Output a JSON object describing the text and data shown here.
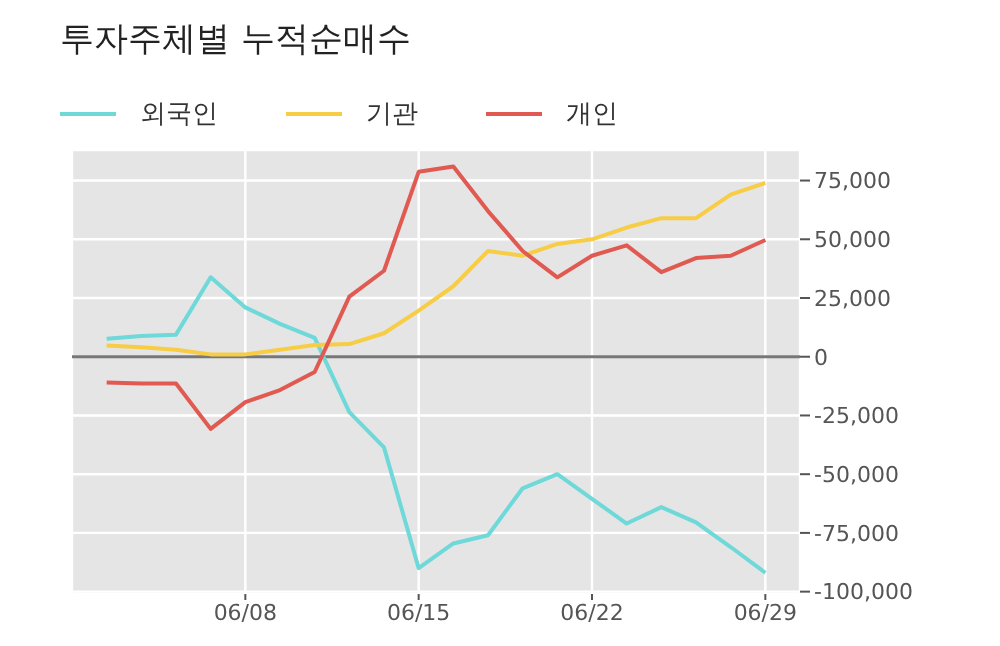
{
  "chart_data": {
    "type": "line",
    "title": "투자주체별 누적순매수",
    "categories": [
      null,
      null,
      null,
      null,
      "06/08",
      null,
      null,
      null,
      null,
      "06/15",
      null,
      null,
      null,
      null,
      "06/22",
      null,
      null,
      null,
      null,
      "06/29"
    ],
    "series": [
      {
        "name": "외국인",
        "color": "#6fd8d8",
        "values": [
          7700,
          8800,
          9400,
          33800,
          21000,
          14000,
          8000,
          -23600,
          -38600,
          -90000,
          -79500,
          -76000,
          -56000,
          -50000,
          -60500,
          -71000,
          -64000,
          -70500,
          -81000,
          -92000
        ]
      },
      {
        "name": "기관",
        "color": "#f7cd45",
        "values": [
          4800,
          4000,
          3000,
          1000,
          1000,
          3000,
          5000,
          5400,
          10000,
          19600,
          30000,
          45000,
          43000,
          48000,
          50000,
          55000,
          59000,
          59000,
          69000,
          74000
        ]
      },
      {
        "name": "개인",
        "color": "#e05a52",
        "values": [
          -11000,
          -11400,
          -11400,
          -30700,
          -19300,
          -14200,
          -6500,
          25600,
          36600,
          78700,
          81000,
          62000,
          45000,
          33800,
          43000,
          47400,
          36000,
          42000,
          43000,
          49700
        ]
      }
    ],
    "ylim": [
      -101000,
      88000
    ],
    "yticks": [
      {
        "value": 75000,
        "label": "75,000"
      },
      {
        "value": 50000,
        "label": "50,000"
      },
      {
        "value": 25000,
        "label": "25,000"
      },
      0,
      {
        "value": -25000,
        "label": "-25,000"
      },
      {
        "value": -50000,
        "label": "-50,000"
      },
      {
        "value": -75000,
        "label": "-75,000"
      },
      {
        "value": -100000,
        "label": "-100,000"
      }
    ],
    "ref_lines": [
      {
        "axis": "y",
        "value": 0,
        "color": "#777777"
      }
    ],
    "grid": true,
    "legend": "top left",
    "marker": "none",
    "line_style": "solid"
  }
}
